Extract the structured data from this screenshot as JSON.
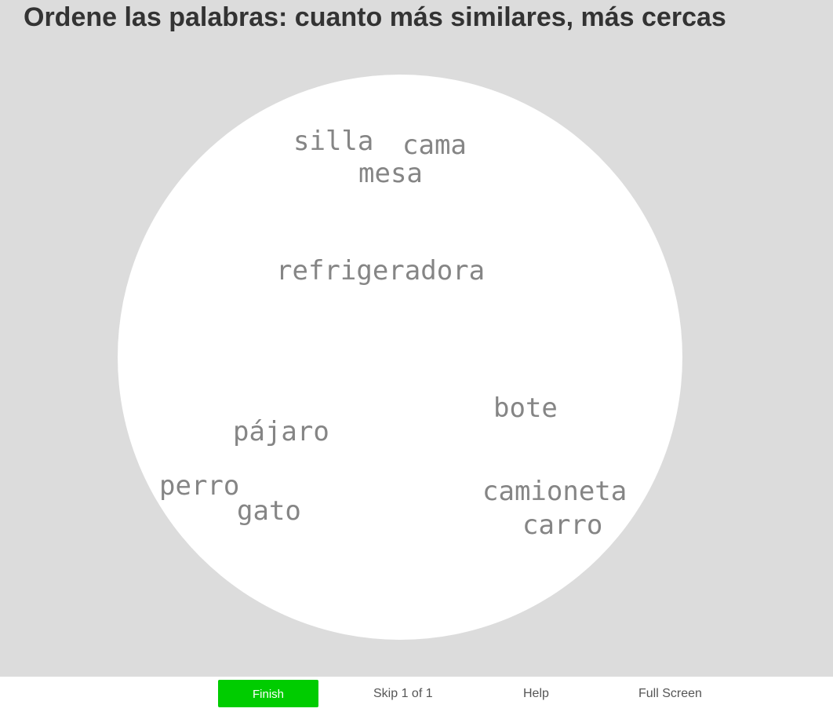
{
  "header": {
    "title": "Ordene las palabras: cuanto más similares, más cercas"
  },
  "arena": {
    "words": [
      {
        "id": "silla",
        "label": "silla"
      },
      {
        "id": "cama",
        "label": "cama"
      },
      {
        "id": "mesa",
        "label": "mesa"
      },
      {
        "id": "refrigeradora",
        "label": "refrigeradora"
      },
      {
        "id": "bote",
        "label": "bote"
      },
      {
        "id": "pajaro",
        "label": "pájaro"
      },
      {
        "id": "perro",
        "label": "perro"
      },
      {
        "id": "gato",
        "label": "gato"
      },
      {
        "id": "camioneta",
        "label": "camioneta"
      },
      {
        "id": "carro",
        "label": "carro"
      }
    ]
  },
  "toolbar": {
    "finish_label": "Finish",
    "skip_label": "Skip 1 of 1",
    "help_label": "Help",
    "fullscreen_label": "Full Screen"
  },
  "colors": {
    "background": "#dcdcdc",
    "arena": "#ffffff",
    "word": "#858585",
    "finish": "#00cc00",
    "title": "#333333"
  }
}
